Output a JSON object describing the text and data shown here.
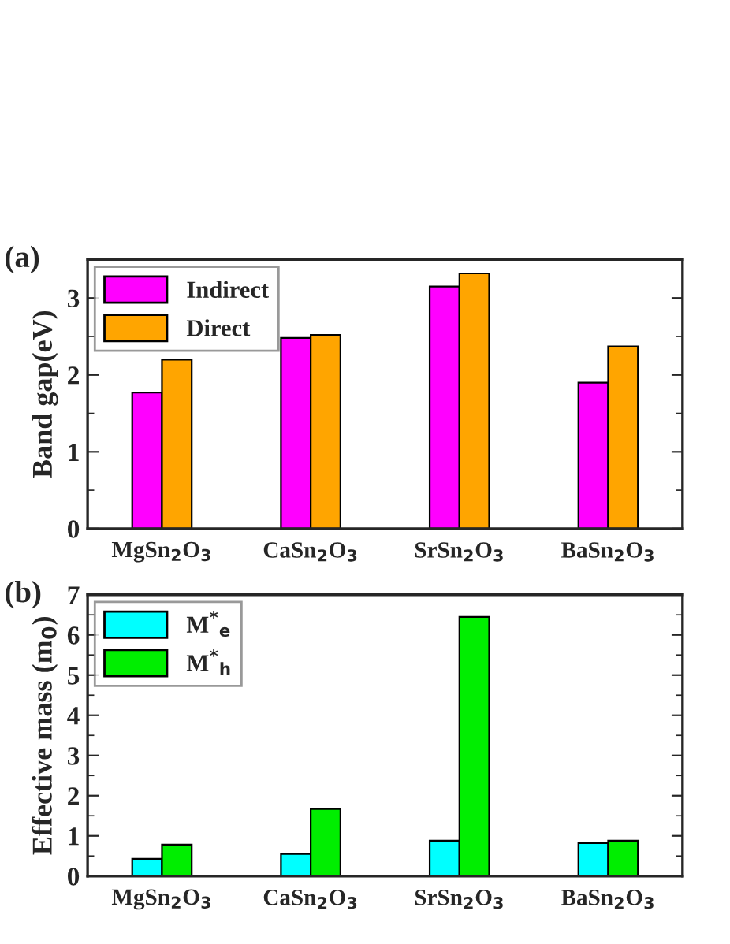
{
  "chart_data": [
    {
      "type": "bar",
      "annotations": [
        "(a)"
      ],
      "ylabel": "Band gap(eV)",
      "categories": [
        "MgSn$_{2}$O$_{3}$",
        "CaSn$_{2}$O$_{3}$",
        "SrSn$_{2}$O$_{3}$",
        "BaSn$_{2}$O$_{3}$"
      ],
      "series": [
        {
          "name": "Indirect",
          "color": "#ff00ff",
          "values": [
            1.77,
            2.48,
            3.15,
            1.9
          ]
        },
        {
          "name": "Direct",
          "color": "#ffa500",
          "values": [
            2.2,
            2.52,
            3.32,
            2.37
          ]
        }
      ],
      "ylim": [
        0,
        3.5
      ],
      "yticks": [
        0,
        1,
        2,
        3
      ],
      "legend": "top left",
      "grid": false
    },
    {
      "type": "bar",
      "annotations": [
        "(b)"
      ],
      "ylabel": "Effective mass (m$_{0}$)",
      "categories": [
        "MgSn$_{2}$O$_{3}$",
        "CaSn$_{2}$O$_{3}$",
        "SrSn$_{2}$O$_{3}$",
        "BaSn$_{2}$O$_{3}$"
      ],
      "series": [
        {
          "name": "M$^{*}$$_{e}$",
          "color": "#00ffff",
          "values": [
            0.43,
            0.55,
            0.88,
            0.82
          ]
        },
        {
          "name": "M$^{*}$$_{h}$",
          "color": "#00ee00",
          "values": [
            0.78,
            1.67,
            6.45,
            0.88
          ]
        }
      ],
      "ylim": [
        0,
        7
      ],
      "yticks": [
        0,
        1,
        2,
        3,
        4,
        5,
        6,
        7
      ],
      "legend": "top left",
      "grid": false
    }
  ]
}
